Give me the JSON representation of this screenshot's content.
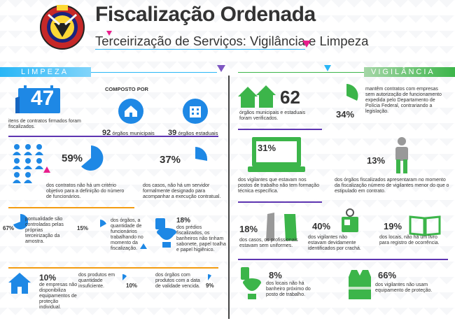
{
  "header": {
    "title": "Fiscalização Ordenada",
    "subtitle": "Terceirização de Serviços: Vigilância e Limpeza"
  },
  "colors": {
    "blue": "#1e88e5",
    "green": "#3cb54a",
    "orange": "#f39c12",
    "purple": "#5e35b1",
    "magenta": "#e91e8c",
    "cyan": "#29b6f6",
    "dark": "#333333"
  },
  "limpeza": {
    "banner": "LIMPEZA",
    "contracts_number": "47",
    "contracts_text": "itens de contratos firmados foram fiscalizados.",
    "composto": "COMPOSTO POR",
    "municipais_number": "92",
    "municipais_label": "órgãos municipais",
    "estaduais_number": "39",
    "estaduais_label": "órgãos estaduais",
    "stat59_pct": "59%",
    "stat59_text": "dos contratos não há um critério objetivo para a definição do número de funcionários.",
    "stat37_pct": "37%",
    "stat37_text": "dos casos, não há um servidor formalmente designado para acompanhar a execução contratual.",
    "stat67_pct": "67%",
    "stat67_text": "pontualidade são controladas pelas próprias terceirização da amostra.",
    "stat15_pct": "15%",
    "stat15_text": "dos órgãos, a quantidade de funcionários trabalhando no momento da fiscalização.",
    "stat18_pct": "18%",
    "stat18_text": "dos prédios fiscalizados, os banheiros não tinham sabonete, papel toalha e papel higiênico.",
    "stat10a_pct": "10%",
    "stat10a_text": "de empresas não disponibiliza equipamentos de proteção individual.",
    "stat10b_pct": "10%",
    "stat10b_text": "dos produtos em quantidade insuficiente.",
    "stat9_pct": "9%",
    "stat9_text": "dos órgãos com produtos com a data de validade vencida."
  },
  "vigilancia": {
    "banner": "VIGILÂNCIA",
    "orgs_number": "62",
    "orgs_text": "órgãos municipais e estaduais foram verificados.",
    "stat34_pct": "34%",
    "stat34_text": "mantêm contratos com empresas sem autorização de funcionamento expedida pelo Departamento de Polícia Federal, contrariando a legislação.",
    "stat31_pct": "31%",
    "stat31_text": "dos vigilantes que estavam nos postos de trabalho não tem formação técnica específica.",
    "stat13_pct": "13%",
    "stat13_text": "dos órgãos fiscalizados apresentaram no momento da fiscalização número de vigilantes menor do que o estipulado em contrato.",
    "stat18_pct": "18%",
    "stat18_text": "dos casos, os profissionais estavam sem uniformes.",
    "stat40_pct": "40%",
    "stat40_text": "dos vigilantes não estavam devidamente identificados por crachá.",
    "stat19_pct": "19%",
    "stat19_text": "dos locais, não há um livro para registro de ocorrência.",
    "stat8_pct": "8%",
    "stat8_text": "dos locais não há banheiro próximo do posto de trabalho.",
    "stat66_pct": "66%",
    "stat66_text": "dos vigilantes não usam equipamento de proteção."
  },
  "icons": [
    "seal-logo",
    "calendar-icon",
    "house-icon",
    "building-icon",
    "people-icon",
    "toilet-icon",
    "house-small-icon",
    "houses-icon",
    "laptop-icon",
    "person-icon",
    "shirt-icon",
    "badge-icon",
    "book-icon",
    "vest-icon"
  ]
}
